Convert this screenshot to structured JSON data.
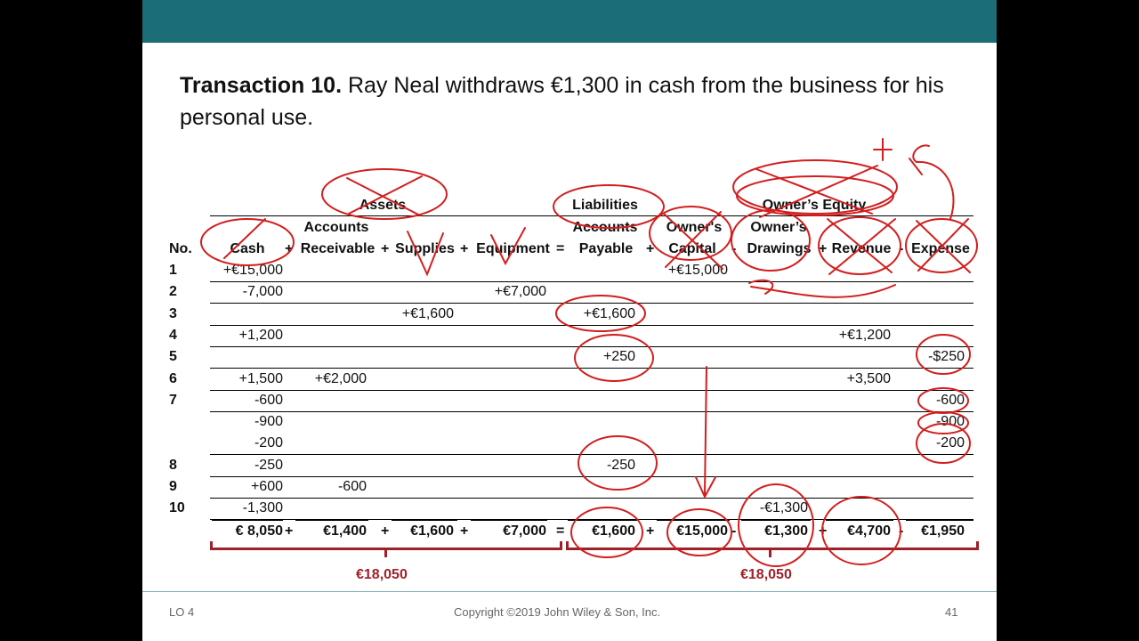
{
  "slide": {
    "title_bold": "Transaction 10.",
    "title_text": " Ray Neal withdraws €1,300 in cash from the business for his personal use."
  },
  "table": {
    "group_headers": {
      "assets": "Assets",
      "liabilities": "Liabilities",
      "equity": "Owner’s Equity"
    },
    "col_no": "No.",
    "col_cash": "Cash",
    "col_ar_1": "Accounts",
    "col_ar_2": "Receivable",
    "col_supplies": "Supplies",
    "col_equipment": "Equipment",
    "col_ap_1": "Accounts",
    "col_ap_2": "Payable",
    "col_capital_1": "Owner's",
    "col_capital_2": "Capital",
    "col_drawings_1": "Owner’s",
    "col_drawings_2": "Drawings",
    "col_revenue": "Revenue",
    "col_expense": "Expense",
    "op_plus": "+",
    "op_minus": "-",
    "op_equals": "=",
    "rows": [
      {
        "no": "1",
        "cash": "+€15,000",
        "ar": "",
        "supplies": "",
        "equipment": "",
        "ap": "",
        "capital": "+€15,000",
        "drawings": "",
        "revenue": "",
        "expense": ""
      },
      {
        "no": "2",
        "cash": "-7,000",
        "ar": "",
        "supplies": "",
        "equipment": "+€7,000",
        "ap": "",
        "capital": "",
        "drawings": "",
        "revenue": "",
        "expense": ""
      },
      {
        "no": "3",
        "cash": "",
        "ar": "",
        "supplies": "+€1,600",
        "equipment": "",
        "ap": "+€1,600",
        "capital": "",
        "drawings": "",
        "revenue": "",
        "expense": ""
      },
      {
        "no": "4",
        "cash": "+1,200",
        "ar": "",
        "supplies": "",
        "equipment": "",
        "ap": "",
        "capital": "",
        "drawings": "",
        "revenue": "+€1,200",
        "expense": ""
      },
      {
        "no": "5",
        "cash": "",
        "ar": "",
        "supplies": "",
        "equipment": "",
        "ap": "+250",
        "capital": "",
        "drawings": "",
        "revenue": "",
        "expense": "-$250"
      },
      {
        "no": "6",
        "cash": "+1,500",
        "ar": "+€2,000",
        "supplies": "",
        "equipment": "",
        "ap": "",
        "capital": "",
        "drawings": "",
        "revenue": "+3,500",
        "expense": ""
      },
      {
        "no": "7",
        "cash": "-600",
        "ar": "",
        "supplies": "",
        "equipment": "",
        "ap": "",
        "capital": "",
        "drawings": "",
        "revenue": "",
        "expense": "-600"
      },
      {
        "no": "",
        "cash": "-900",
        "ar": "",
        "supplies": "",
        "equipment": "",
        "ap": "",
        "capital": "",
        "drawings": "",
        "revenue": "",
        "expense": "-900"
      },
      {
        "no": "",
        "cash": "-200",
        "ar": "",
        "supplies": "",
        "equipment": "",
        "ap": "",
        "capital": "",
        "drawings": "",
        "revenue": "",
        "expense": "-200"
      },
      {
        "no": "8",
        "cash": "-250",
        "ar": "",
        "supplies": "",
        "equipment": "",
        "ap": "-250",
        "capital": "",
        "drawings": "",
        "revenue": "",
        "expense": ""
      },
      {
        "no": "9",
        "cash": "+600",
        "ar": "-600",
        "supplies": "",
        "equipment": "",
        "ap": "",
        "capital": "",
        "drawings": "",
        "revenue": "",
        "expense": ""
      },
      {
        "no": "10",
        "cash": "-1,300",
        "ar": "",
        "supplies": "",
        "equipment": "",
        "ap": "",
        "capital": "",
        "drawings": "-€1,300",
        "revenue": "",
        "expense": ""
      }
    ],
    "totals": {
      "cash": "€  8,050",
      "ar": "€1,400",
      "supplies": "€1,600",
      "equipment": "€7,000",
      "ap": "€1,600",
      "capital": "€15,000",
      "drawings": "€1,300",
      "revenue": "€4,700",
      "expense": "€1,950"
    },
    "sum_assets": "€18,050",
    "sum_liab_equity": "€18,050"
  },
  "footer": {
    "left": "LO 4",
    "center": "Copyright ©2019 John Wiley & Son, Inc.",
    "right": "41"
  },
  "colors": {
    "teal_bar": "#1b6d78",
    "ink_red": "#d21e1e",
    "brace_red": "#a0202a"
  }
}
